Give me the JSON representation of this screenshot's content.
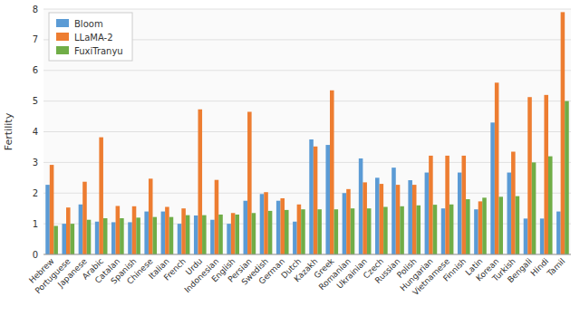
{
  "chart_data": {
    "type": "bar",
    "ylabel": "Fertility",
    "categories": [
      "Hebrew",
      "Portuguese",
      "Japanese",
      "Arabic",
      "Catalan",
      "Spanish",
      "Chinese",
      "Italian",
      "French",
      "Urdu",
      "Indonesian",
      "English",
      "Persian",
      "Swedish",
      "German",
      "Dutch",
      "Kazakh",
      "Greek",
      "Romanian",
      "Ukrainian",
      "Czech",
      "Russian",
      "Polish",
      "Hungarian",
      "Vietnamese",
      "Finnish",
      "Latin",
      "Korean",
      "Turkish",
      "Bengali",
      "Hindi",
      "Tamil"
    ],
    "series": [
      {
        "name": "Bloom",
        "color": "#5b9bd5",
        "values": [
          2.27,
          1.0,
          1.63,
          1.07,
          1.05,
          1.05,
          1.4,
          1.4,
          1.0,
          1.27,
          1.13,
          1.0,
          1.75,
          1.97,
          1.75,
          1.07,
          3.75,
          3.57,
          2.0,
          3.13,
          2.5,
          2.83,
          2.42,
          2.67,
          1.5,
          2.67,
          1.47,
          4.3,
          2.67,
          1.17,
          1.17,
          1.4
        ]
      },
      {
        "name": "LLaMA-2",
        "color": "#ed7d31",
        "values": [
          2.92,
          1.53,
          2.37,
          3.82,
          1.58,
          1.57,
          2.47,
          1.55,
          1.5,
          4.73,
          2.43,
          1.35,
          4.65,
          2.03,
          1.83,
          1.63,
          3.52,
          5.35,
          2.13,
          2.35,
          2.3,
          2.27,
          2.27,
          3.22,
          3.22,
          3.22,
          1.73,
          5.6,
          3.35,
          5.13,
          5.2,
          7.9
        ]
      },
      {
        "name": "FuxiTranyu",
        "color": "#70ad47",
        "values": [
          0.93,
          1.0,
          1.13,
          1.18,
          1.18,
          1.2,
          1.22,
          1.22,
          1.28,
          1.28,
          1.3,
          1.3,
          1.35,
          1.42,
          1.45,
          1.47,
          1.47,
          1.47,
          1.5,
          1.5,
          1.55,
          1.57,
          1.6,
          1.62,
          1.63,
          1.8,
          1.85,
          1.88,
          1.9,
          3.0,
          3.2,
          5.0
        ]
      }
    ],
    "ylim": [
      0,
      8
    ],
    "yticks": [
      0,
      1,
      2,
      3,
      4,
      5,
      6,
      7,
      8
    ],
    "grid": true,
    "legend": "upper left"
  }
}
